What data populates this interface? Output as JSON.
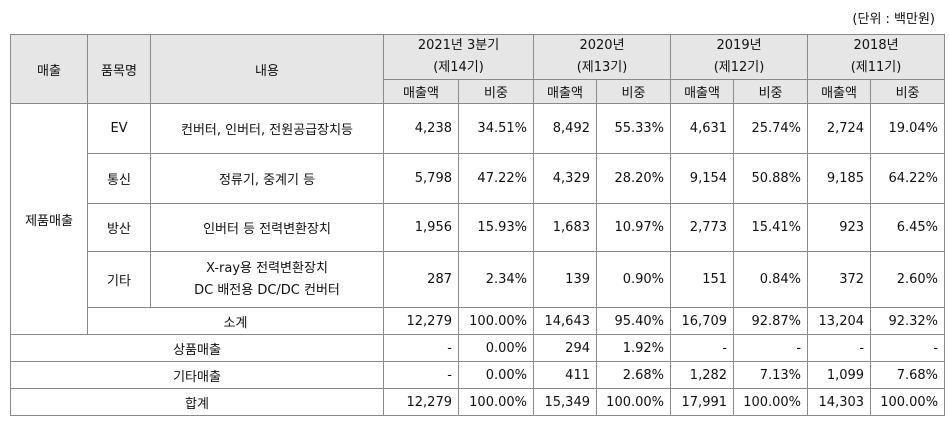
{
  "unit_note": "(단위 : 백만원)",
  "header": {
    "col_sales": "매출",
    "col_item": "품목명",
    "col_content": "내용",
    "periods": [
      {
        "year": "2021년 3분기",
        "term": "(제14기)"
      },
      {
        "year": "2020년",
        "term": "(제13기)"
      },
      {
        "year": "2019년",
        "term": "(제12기)"
      },
      {
        "year": "2018년",
        "term": "(제11기)"
      }
    ],
    "sub_amount": "매출액",
    "sub_ratio": "비중"
  },
  "product_group": "제품매출",
  "product_rows": [
    {
      "item": "EV",
      "content": [
        "컨버터, 인버터, 전원공급장치등"
      ],
      "values": [
        "4,238",
        "34.51%",
        "8,492",
        "55.33%",
        "4,631",
        "25.74%",
        "2,724",
        "19.04%"
      ]
    },
    {
      "item": "통신",
      "content": [
        "정류기, 중계기 등"
      ],
      "values": [
        "5,798",
        "47.22%",
        "4,329",
        "28.20%",
        "9,154",
        "50.88%",
        "9,185",
        "64.22%"
      ]
    },
    {
      "item": "방산",
      "content": [
        "인버터 등 전력변환장치"
      ],
      "values": [
        "1,956",
        "15.93%",
        "1,683",
        "10.97%",
        "2,773",
        "15.41%",
        "923",
        "6.45%"
      ]
    },
    {
      "item": "기타",
      "content": [
        "X-ray용 전력변환장치",
        "DC 배전용 DC/DC 컨버터"
      ],
      "values": [
        "287",
        "2.34%",
        "139",
        "0.90%",
        "151",
        "0.84%",
        "372",
        "2.60%"
      ]
    }
  ],
  "subtotal": {
    "label": "소계",
    "values": [
      "12,279",
      "100.00%",
      "14,643",
      "95.40%",
      "16,709",
      "92.87%",
      "13,204",
      "92.32%"
    ]
  },
  "other_rows": [
    {
      "label": "상품매출",
      "values": [
        "-",
        "0.00%",
        "294",
        "1.92%",
        "-",
        "-",
        "-",
        "-"
      ]
    },
    {
      "label": "기타매출",
      "values": [
        "-",
        "0.00%",
        "411",
        "2.68%",
        "1,282",
        "7.13%",
        "1,099",
        "7.68%"
      ]
    },
    {
      "label": "합계",
      "values": [
        "12,279",
        "100.00%",
        "15,349",
        "100.00%",
        "17,991",
        "100.00%",
        "14,303",
        "100.00%"
      ]
    }
  ]
}
